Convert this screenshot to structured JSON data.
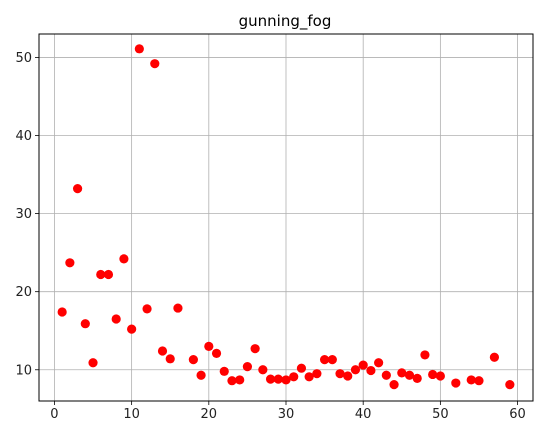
{
  "chart_data": {
    "type": "scatter",
    "title": "gunning_fog",
    "xlabel": "",
    "ylabel": "",
    "xlim": [
      -2,
      62
    ],
    "ylim": [
      6,
      53
    ],
    "xticks": [
      0,
      10,
      20,
      30,
      40,
      50,
      60
    ],
    "yticks": [
      10,
      20,
      30,
      40,
      50
    ],
    "grid": true,
    "marker_color": "#ff0000",
    "points": [
      {
        "x": 1,
        "y": 17.4
      },
      {
        "x": 2,
        "y": 23.7
      },
      {
        "x": 3,
        "y": 33.2
      },
      {
        "x": 4,
        "y": 15.9
      },
      {
        "x": 5,
        "y": 10.9
      },
      {
        "x": 6,
        "y": 22.2
      },
      {
        "x": 7,
        "y": 22.2
      },
      {
        "x": 8,
        "y": 16.5
      },
      {
        "x": 9,
        "y": 24.2
      },
      {
        "x": 10,
        "y": 15.2
      },
      {
        "x": 11,
        "y": 51.1
      },
      {
        "x": 12,
        "y": 17.8
      },
      {
        "x": 13,
        "y": 49.2
      },
      {
        "x": 14,
        "y": 12.4
      },
      {
        "x": 15,
        "y": 11.4
      },
      {
        "x": 16,
        "y": 17.9
      },
      {
        "x": 18,
        "y": 11.3
      },
      {
        "x": 19,
        "y": 9.3
      },
      {
        "x": 20,
        "y": 13.0
      },
      {
        "x": 21,
        "y": 12.1
      },
      {
        "x": 22,
        "y": 9.8
      },
      {
        "x": 23,
        "y": 8.6
      },
      {
        "x": 24,
        "y": 8.7
      },
      {
        "x": 25,
        "y": 10.4
      },
      {
        "x": 26,
        "y": 12.7
      },
      {
        "x": 27,
        "y": 10.0
      },
      {
        "x": 28,
        "y": 8.8
      },
      {
        "x": 29,
        "y": 8.8
      },
      {
        "x": 30,
        "y": 8.7
      },
      {
        "x": 31,
        "y": 9.1
      },
      {
        "x": 32,
        "y": 10.2
      },
      {
        "x": 33,
        "y": 9.1
      },
      {
        "x": 34,
        "y": 9.5
      },
      {
        "x": 35,
        "y": 11.3
      },
      {
        "x": 36,
        "y": 11.3
      },
      {
        "x": 37,
        "y": 9.5
      },
      {
        "x": 38,
        "y": 9.2
      },
      {
        "x": 39,
        "y": 10.0
      },
      {
        "x": 40,
        "y": 10.6
      },
      {
        "x": 41,
        "y": 9.9
      },
      {
        "x": 42,
        "y": 10.9
      },
      {
        "x": 43,
        "y": 9.3
      },
      {
        "x": 44,
        "y": 8.1
      },
      {
        "x": 45,
        "y": 9.6
      },
      {
        "x": 46,
        "y": 9.3
      },
      {
        "x": 47,
        "y": 8.9
      },
      {
        "x": 48,
        "y": 11.9
      },
      {
        "x": 49,
        "y": 9.4
      },
      {
        "x": 50,
        "y": 9.2
      },
      {
        "x": 52,
        "y": 8.3
      },
      {
        "x": 54,
        "y": 8.7
      },
      {
        "x": 55,
        "y": 8.6
      },
      {
        "x": 57,
        "y": 11.6
      },
      {
        "x": 59,
        "y": 8.1
      }
    ]
  }
}
